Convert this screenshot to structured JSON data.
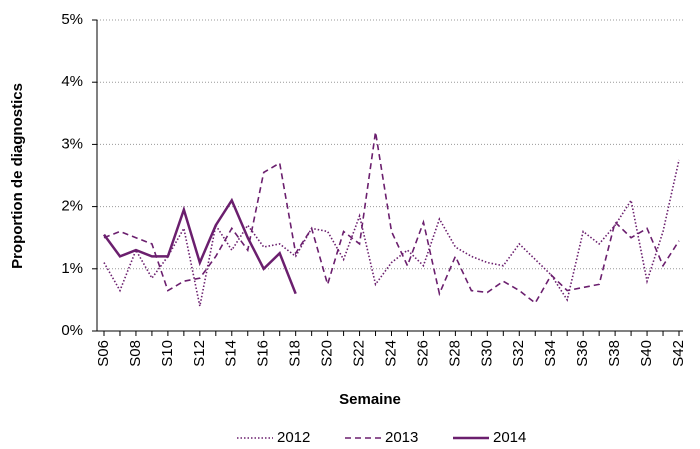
{
  "chart_data": {
    "type": "line",
    "x_label": "Semaine",
    "y_label": "Proportion de diagnostics",
    "categories": [
      "S06",
      null,
      "S08",
      null,
      "S10",
      null,
      "S12",
      null,
      "S14",
      null,
      "S16",
      null,
      "S18",
      null,
      "S20",
      null,
      "S22",
      null,
      "S24",
      null,
      "S26",
      null,
      "S28",
      null,
      "S30",
      null,
      "S32",
      null,
      "S34",
      null,
      "S36",
      null,
      "S38",
      null,
      "S40",
      null,
      "S42"
    ],
    "series": [
      {
        "name": "2012",
        "color": "#6b1f6e",
        "dash": "dotted",
        "values": [
          1.1,
          0.65,
          1.3,
          0.85,
          1.2,
          1.65,
          0.4,
          1.7,
          1.3,
          1.7,
          1.35,
          1.4,
          1.2,
          1.65,
          1.6,
          1.15,
          1.85,
          0.75,
          1.1,
          1.3,
          1.05,
          1.8,
          1.35,
          1.2,
          1.1,
          1.05,
          1.4,
          1.15,
          0.9,
          0.5,
          1.6,
          1.4,
          1.7,
          2.1,
          0.8,
          1.6,
          2.75
        ]
      },
      {
        "name": "2013",
        "color": "#6b1f6e",
        "dash": "dashed",
        "values": [
          1.5,
          1.6,
          1.5,
          1.4,
          0.65,
          0.8,
          0.85,
          1.2,
          1.65,
          1.3,
          2.55,
          2.7,
          1.25,
          1.65,
          0.75,
          1.6,
          1.4,
          3.2,
          1.6,
          1.05,
          1.75,
          0.6,
          1.2,
          0.65,
          0.62,
          0.8,
          0.65,
          0.45,
          0.9,
          0.65,
          0.7,
          0.75,
          1.75,
          1.5,
          1.65,
          1.05,
          1.45
        ]
      },
      {
        "name": "2014",
        "color": "#6b1f6e",
        "dash": "solid",
        "values": [
          1.55,
          1.2,
          1.3,
          1.2,
          1.2,
          1.95,
          1.1,
          1.7,
          2.1,
          1.5,
          1.0,
          1.25,
          0.6,
          null,
          null,
          null,
          null,
          null,
          null,
          null,
          null,
          null,
          null,
          null,
          null,
          null,
          null,
          null,
          null,
          null,
          null,
          null,
          null,
          null,
          null,
          null,
          null
        ]
      }
    ],
    "ylim": [
      0,
      5
    ],
    "yticks": [
      {
        "value": 0,
        "label": "0%"
      },
      {
        "value": 1,
        "label": "1%"
      },
      {
        "value": 2,
        "label": "2%"
      },
      {
        "value": 3,
        "label": "3%"
      },
      {
        "value": 4,
        "label": "4%"
      },
      {
        "value": 5,
        "label": "5%"
      }
    ],
    "grid": true,
    "legend": "bottom"
  }
}
